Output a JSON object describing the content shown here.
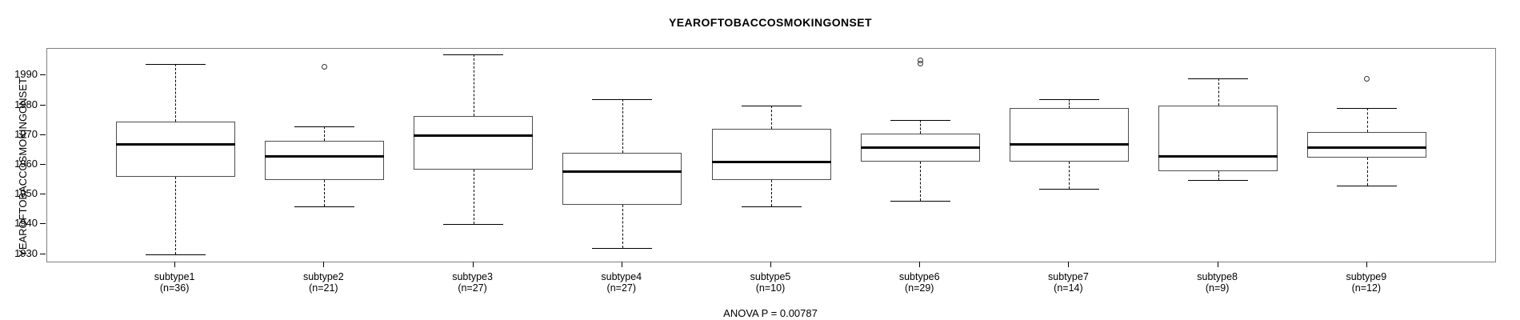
{
  "page": {
    "background": "#ffffff",
    "ink_color": "#000000",
    "frame_color": "#808080",
    "box_border_color": "#4d4d4d"
  },
  "chart_data": {
    "type": "boxplot",
    "title": "YEAROFTOBACCOSMOKINGONSET",
    "ylabel": "YEAROFTOBACCOSMOKINGONSET",
    "xlabel": "",
    "annotation": "ANOVA P = 0.00787",
    "ylim": [
      1927.5,
      1999.0
    ],
    "yticks": [
      1930,
      1940,
      1950,
      1960,
      1970,
      1980,
      1990
    ],
    "grid": false,
    "legend": "none",
    "groups": [
      {
        "label": "subtype1",
        "n_label": "(n=36)",
        "low": 1930,
        "q1": 1956,
        "median": 1967,
        "q3": 1974.5,
        "high": 1994,
        "outliers": []
      },
      {
        "label": "subtype2",
        "n_label": "(n=21)",
        "low": 1946,
        "q1": 1955,
        "median": 1963,
        "q3": 1968,
        "high": 1973,
        "outliers": [
          1993
        ]
      },
      {
        "label": "subtype3",
        "n_label": "(n=27)",
        "low": 1940,
        "q1": 1958.5,
        "median": 1970,
        "q3": 1976.5,
        "high": 1997,
        "outliers": []
      },
      {
        "label": "subtype4",
        "n_label": "(n=27)",
        "low": 1932,
        "q1": 1946.5,
        "median": 1958,
        "q3": 1964,
        "high": 1982,
        "outliers": []
      },
      {
        "label": "subtype5",
        "n_label": "(n=10)",
        "low": 1946,
        "q1": 1955,
        "median": 1961,
        "q3": 1972,
        "high": 1980,
        "outliers": []
      },
      {
        "label": "subtype6",
        "n_label": "(n=29)",
        "low": 1948,
        "q1": 1961,
        "median": 1966,
        "q3": 1970.5,
        "high": 1975,
        "outliers": [
          1995,
          1994
        ]
      },
      {
        "label": "subtype7",
        "n_label": "(n=14)",
        "low": 1952,
        "q1": 1961,
        "median": 1967,
        "q3": 1979,
        "high": 1982,
        "outliers": []
      },
      {
        "label": "subtype8",
        "n_label": "(n=9)",
        "low": 1955,
        "q1": 1958,
        "median": 1963,
        "q3": 1980,
        "high": 1989,
        "outliers": []
      },
      {
        "label": "subtype9",
        "n_label": "(n=12)",
        "low": 1953,
        "q1": 1962.5,
        "median": 1966,
        "q3": 1971,
        "high": 1979,
        "outliers": [
          1989
        ]
      }
    ]
  }
}
